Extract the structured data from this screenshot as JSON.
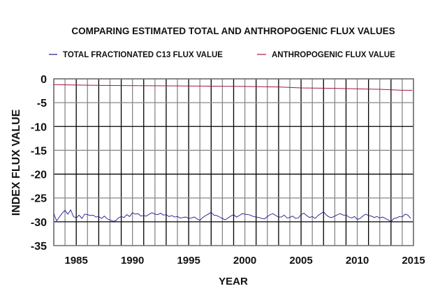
{
  "chart_data": {
    "type": "line",
    "title": "COMPARING ESTIMATED TOTAL AND ANTHROPOGENIC FLUX VALUES",
    "xlabel": "YEAR",
    "ylabel": "INDEX FLUX VALUE",
    "xlim": [
      1983,
      2015
    ],
    "ylim": [
      -35,
      0
    ],
    "xticks": [
      1985,
      1990,
      1995,
      2000,
      2005,
      2010,
      2015
    ],
    "yticks": [
      0,
      -5,
      -10,
      -15,
      -20,
      -25,
      -30,
      -35
    ],
    "grid": true,
    "legend_position": "top",
    "colors": {
      "total": "#1a1a8c",
      "anthropogenic": "#a3183c"
    },
    "series": [
      {
        "name": "TOTAL FRACTIONATED C13 FLUX VALUE",
        "quarterly_values_by_year": {
          "1983": [
            -28.3,
            -29.8,
            -29.0,
            -28.2
          ],
          "1984": [
            -27.6,
            -28.4,
            -27.5,
            -28.9
          ],
          "1985": [
            -29.2,
            -28.6,
            -29.3,
            -28.4
          ],
          "1986": [
            -28.5,
            -28.7,
            -28.6,
            -29.0
          ],
          "1987": [
            -28.9,
            -29.3,
            -28.8,
            -29.4
          ],
          "1988": [
            -29.6,
            -29.9,
            -29.8,
            -29.2
          ],
          "1989": [
            -28.9,
            -29.1,
            -28.5,
            -28.9
          ],
          "1990": [
            -28.1,
            -28.4,
            -28.3,
            -28.8
          ],
          "1991": [
            -28.7,
            -28.8,
            -28.4,
            -28.1
          ],
          "1992": [
            -28.4,
            -28.5,
            -28.2,
            -28.6
          ],
          "1993": [
            -28.5,
            -28.9,
            -28.7,
            -29.0
          ],
          "1994": [
            -28.9,
            -29.2,
            -29.1,
            -29.0
          ],
          "1995": [
            -29.3,
            -29.2,
            -29.0,
            -29.4
          ],
          "1996": [
            -29.7,
            -29.1,
            -28.7,
            -28.4
          ],
          "1997": [
            -28.0,
            -28.6,
            -28.7,
            -29.0
          ],
          "1998": [
            -29.3,
            -29.6,
            -29.2,
            -28.8
          ],
          "1999": [
            -28.5,
            -29.0,
            -28.7,
            -28.3
          ],
          "2000": [
            -28.4,
            -28.5,
            -28.6,
            -28.9
          ],
          "2001": [
            -29.0,
            -29.1,
            -29.3,
            -29.4
          ],
          "2002": [
            -28.9,
            -28.5,
            -28.3,
            -28.7
          ],
          "2003": [
            -29.0,
            -29.0,
            -28.6,
            -29.2
          ],
          "2004": [
            -29.1,
            -28.8,
            -29.3,
            -29.2
          ],
          "2005": [
            -28.5,
            -28.2,
            -28.7,
            -29.1
          ],
          "2006": [
            -28.9,
            -29.3,
            -28.7,
            -28.3
          ],
          "2007": [
            -27.9,
            -28.6,
            -29.0,
            -29.1
          ],
          "2008": [
            -28.8,
            -28.5,
            -28.3,
            -28.6
          ],
          "2009": [
            -28.6,
            -29.0,
            -29.2,
            -28.9
          ],
          "2010": [
            -29.5,
            -29.3,
            -28.8,
            -28.4
          ],
          "2011": [
            -28.7,
            -28.8,
            -29.1,
            -28.9
          ],
          "2012": [
            -29.2,
            -29.0,
            -29.3,
            -29.6
          ],
          "2013": [
            -30.0,
            -29.3,
            -29.2,
            -28.9
          ],
          "2014": [
            -29.0,
            -28.4,
            -28.6,
            -29.3
          ]
        }
      },
      {
        "name": "ANTHROPOGENIC FLUX VALUE",
        "points": [
          [
            1983,
            -1.2
          ],
          [
            1985,
            -1.3
          ],
          [
            1988,
            -1.4
          ],
          [
            1995,
            -1.5
          ],
          [
            2000,
            -1.6
          ],
          [
            2003,
            -1.7
          ],
          [
            2005,
            -1.9
          ],
          [
            2008,
            -2.0
          ],
          [
            2010,
            -2.1
          ],
          [
            2012,
            -2.2
          ],
          [
            2014,
            -2.4
          ],
          [
            2014.9,
            -2.4
          ]
        ]
      }
    ]
  }
}
